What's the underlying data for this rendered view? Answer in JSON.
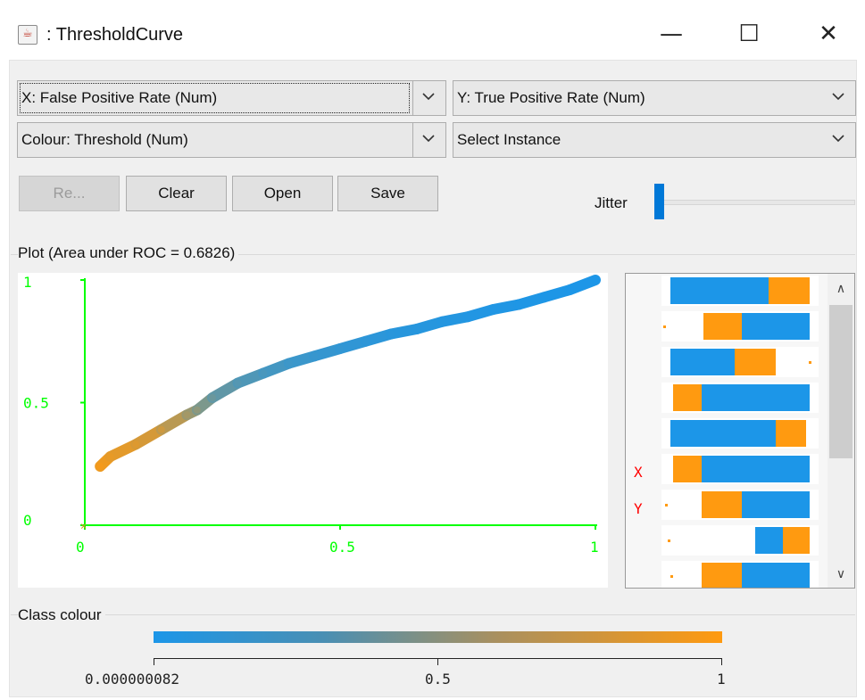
{
  "window": {
    "title": ": ThresholdCurve",
    "minimize_glyph": "—",
    "maximize_glyph": "☐",
    "close_glyph": "✕",
    "app_icon": "java-cup-icon"
  },
  "selectors": {
    "x_axis": "X: False Positive Rate (Num)",
    "y_axis": "Y: True Positive Rate (Num)",
    "colour": "Colour: Threshold (Num)",
    "instance": "Select Instance"
  },
  "buttons": {
    "reset": "Re...",
    "clear": "Clear",
    "open": "Open",
    "save": "Save"
  },
  "jitter": {
    "label": "Jitter",
    "value": 0
  },
  "plot": {
    "title": "Plot (Area under ROC = 0.6826)",
    "matrix_x_label": "X",
    "matrix_y_label": "Y"
  },
  "class_colour": {
    "title": "Class colour",
    "min_label": "0.000000082",
    "mid_label": "0.5",
    "max_label": "1",
    "low_color": "#1c96e8",
    "high_color": "#ff9a10"
  },
  "chart_data": {
    "type": "scatter",
    "title": "",
    "xlabel": "",
    "ylabel": "",
    "xlim": [
      0,
      1
    ],
    "ylim": [
      0,
      1
    ],
    "x_ticks": [
      "0",
      "0.5",
      "1"
    ],
    "y_ticks": [
      "0",
      "0.5",
      "1"
    ],
    "axis_color": "#00ff00",
    "low_color": "#1c96e8",
    "high_color": "#ff9a10",
    "series": [
      {
        "x": [
          0.03,
          0.05,
          0.1,
          0.15,
          0.2,
          0.22,
          0.25,
          0.3,
          0.35,
          0.4,
          0.45,
          0.5,
          0.55,
          0.6,
          0.65,
          0.7,
          0.75,
          0.8,
          0.85,
          0.9,
          0.95,
          1.0
        ],
        "y": [
          0.24,
          0.28,
          0.33,
          0.39,
          0.45,
          0.47,
          0.52,
          0.58,
          0.62,
          0.66,
          0.69,
          0.72,
          0.75,
          0.78,
          0.8,
          0.83,
          0.85,
          0.88,
          0.9,
          0.93,
          0.96,
          1.0
        ],
        "threshold": [
          0.95,
          0.9,
          0.85,
          0.78,
          0.6,
          0.5,
          0.35,
          0.25,
          0.2,
          0.15,
          0.12,
          0.1,
          0.08,
          0.06,
          0.05,
          0.04,
          0.03,
          0.02,
          0.015,
          0.01,
          0.005,
          0.0
        ]
      }
    ],
    "grid": false
  }
}
